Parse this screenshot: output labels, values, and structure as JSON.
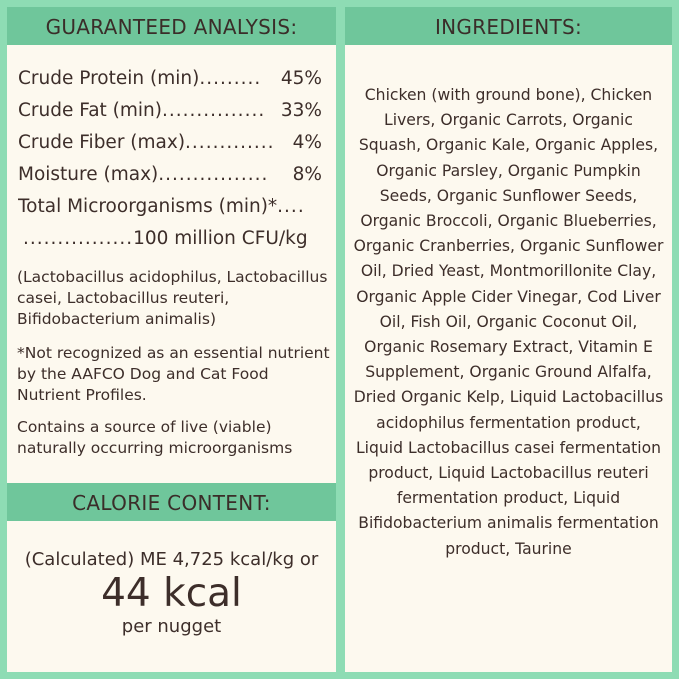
{
  "analysis": {
    "title": "GUARANTEED ANALYSIS:",
    "rows": [
      {
        "label": "Crude Protein (min)",
        "dots": ".........",
        "value": "45%"
      },
      {
        "label": "Crude Fat (min)",
        "dots": "...............",
        "value": "33%"
      },
      {
        "label": "Crude Fiber (max)",
        "dots": ".............",
        "value": "4%"
      },
      {
        "label": "Moisture (max)",
        "dots": " ................",
        "value": "8%"
      },
      {
        "label": "Total Microorganisms (min)*",
        "dots": "....",
        "value": ""
      },
      {
        "label": "",
        "dots": " ................",
        "value": "100 million CFU/kg"
      }
    ],
    "strains": "(Lactobacillus acidophilus, Lactobacillus casei, Lactobacillus reuteri, Bifidobacterium animalis)",
    "footnote": "*Not recognized as an essential nutrient by the AAFCO Dog and Cat Food Nutrient Profiles.",
    "live": "Contains a source of live (viable) naturally occurring microorganisms"
  },
  "calorie": {
    "title": "CALORIE CONTENT:",
    "line1": "(Calculated) ME 4,725 kcal/kg or",
    "big": "44 kcal",
    "line3": "per nugget"
  },
  "ingredients": {
    "title": "INGREDIENTS:",
    "text": "Chicken (with ground bone), Chicken Livers, Organic Carrots, Organic Squash, Organic Kale, Organic Apples, Organic Parsley, Organic Pumpkin Seeds, Organic Sunflower Seeds, Organic Broccoli, Organic Blueberries, Organic Cranberries, Organic Sunflower Oil, Dried Yeast, Montmorillonite Clay, Organic Apple Cider Vinegar, Cod Liver Oil, Fish Oil, Organic Coconut Oil, Organic Rosemary Extract, Vitamin E Supplement, Organic Ground Alfalfa, Dried Organic Kelp, Liquid Lactobacillus acidophilus fermentation product, Liquid Lactobacillus casei fermentation product, Liquid Lactobacillus reuteri fermentation product, Liquid Bifidobacterium animalis fermentation product, Taurine"
  },
  "colors": {
    "background": "#8edcb4",
    "header": "#6fc69b",
    "panel": "#fdf9ef",
    "text": "#3d2e2a"
  }
}
